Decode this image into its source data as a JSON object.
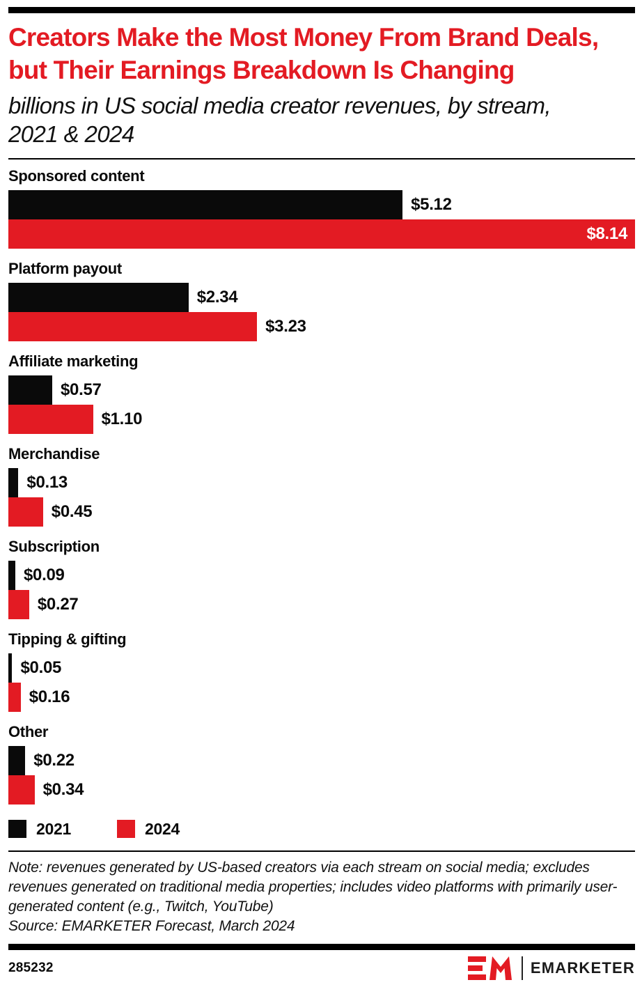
{
  "header": {
    "title_line1": "Creators Make the Most Money From Brand Deals,",
    "title_line2": "but Their Earnings Breakdown Is Changing",
    "subtitle_line1": "billions in US social media creator revenues, by stream,",
    "subtitle_line2": "2021 & 2024"
  },
  "colors": {
    "accent_red": "#e31b23",
    "bar_black": "#0a0a0a"
  },
  "chart_data": {
    "type": "bar",
    "orientation": "horizontal",
    "title": "Creators Make the Most Money From Brand Deals, but Their Earnings Breakdown Is Changing",
    "subtitle": "billions in US social media creator revenues, by stream, 2021 & 2024",
    "unit": "billions of US dollars",
    "categories": [
      "Sponsored content",
      "Platform payout",
      "Affiliate marketing",
      "Merchandise",
      "Subscription",
      "Tipping & gifting",
      "Other"
    ],
    "series": [
      {
        "name": "2021",
        "color": "#0a0a0a",
        "values": [
          5.12,
          2.34,
          0.57,
          0.13,
          0.09,
          0.05,
          0.22
        ],
        "labels": [
          "$5.12",
          "$2.34",
          "$0.57",
          "$0.13",
          "$0.09",
          "$0.05",
          "$0.22"
        ]
      },
      {
        "name": "2024",
        "color": "#e31b23",
        "values": [
          8.14,
          3.23,
          1.1,
          0.45,
          0.27,
          0.16,
          0.34
        ],
        "labels": [
          "$8.14",
          "$3.23",
          "$1.10",
          "$0.45",
          "$0.27",
          "$0.16",
          "$0.34"
        ]
      }
    ],
    "xlim": [
      0,
      8.14
    ],
    "grid": false,
    "legend_position": "bottom"
  },
  "legend": {
    "items": [
      {
        "label": "2021",
        "color": "#0a0a0a"
      },
      {
        "label": "2024",
        "color": "#e31b23"
      }
    ]
  },
  "footer": {
    "note": "Note: revenues generated by US-based creators via each stream on social media; excludes revenues generated on traditional media properties; includes video platforms with primarily user-generated content (e.g., Twitch, YouTube)",
    "source": "Source: EMARKETER Forecast, March 2024",
    "chart_id": "285232",
    "brand": "EMARKETER"
  }
}
